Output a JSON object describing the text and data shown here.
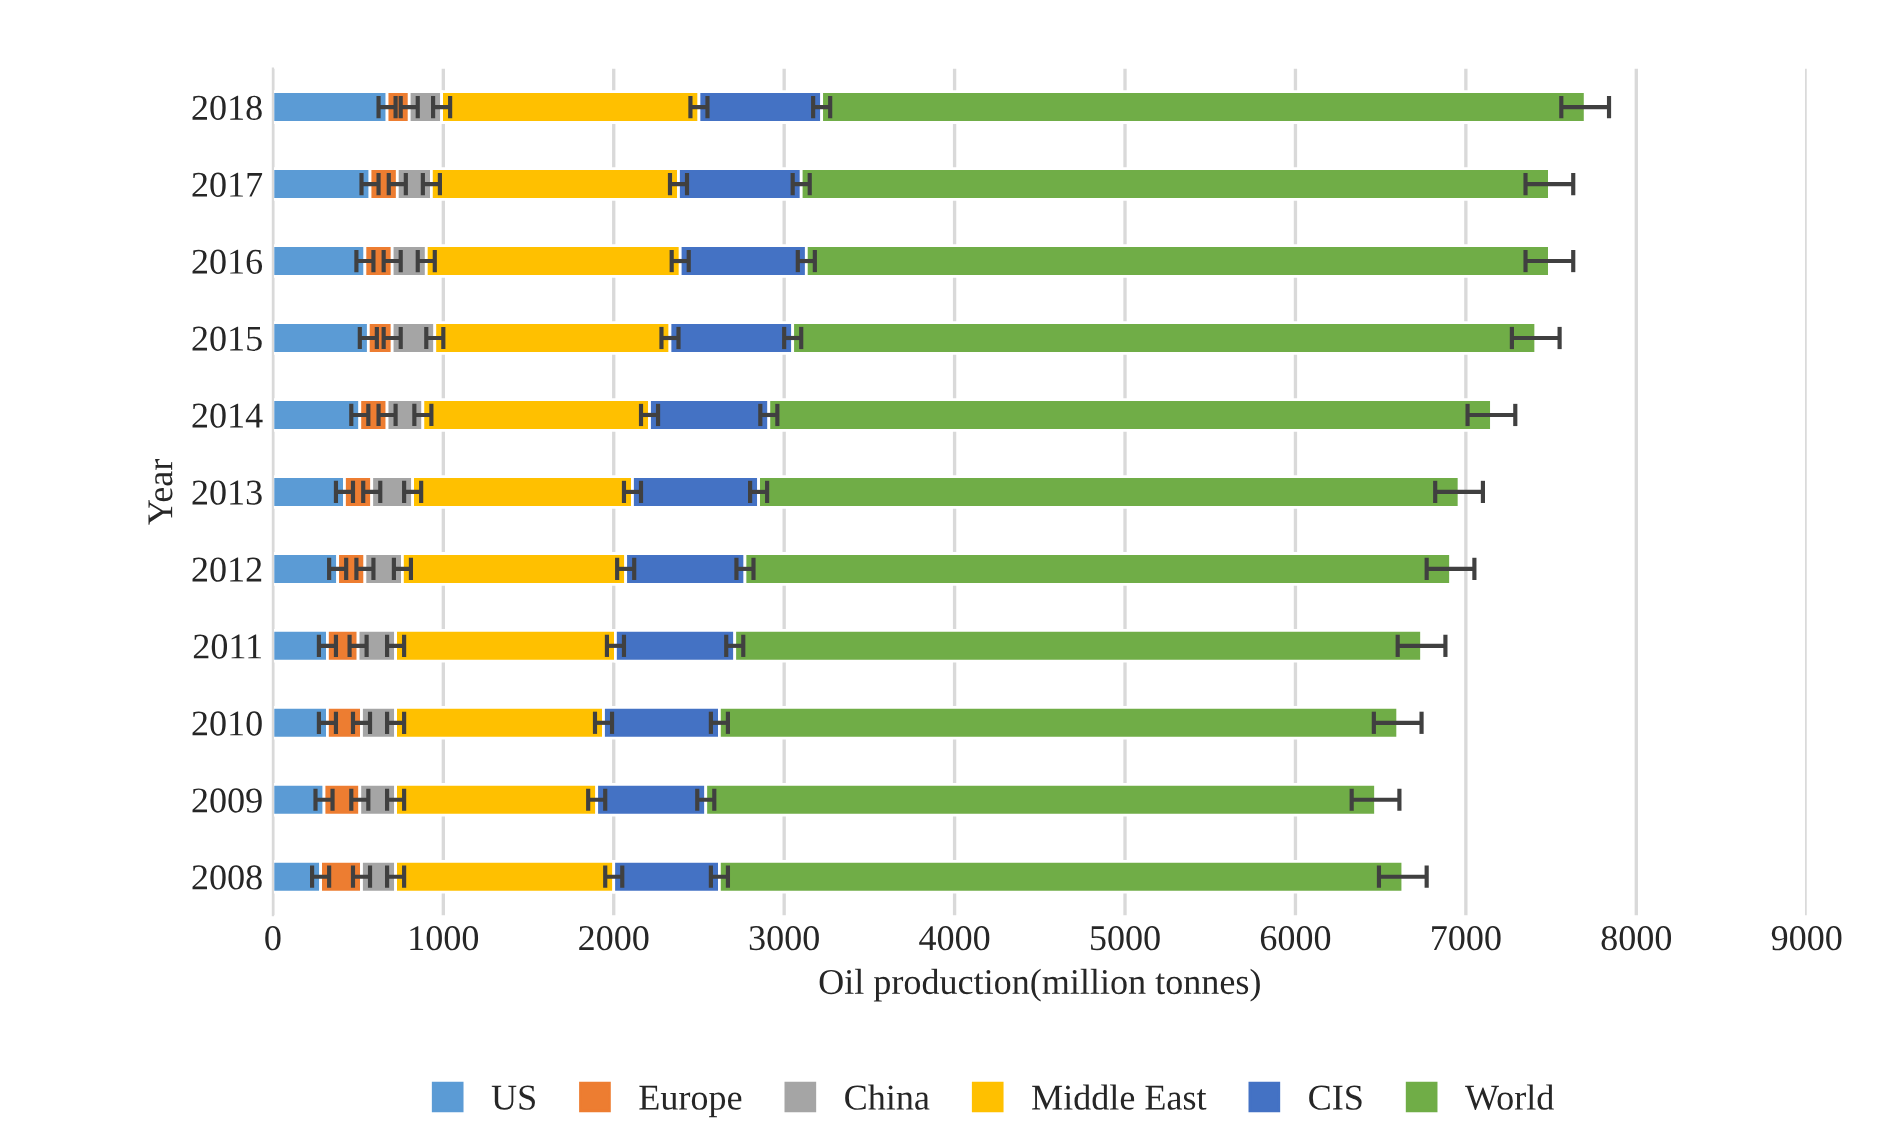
{
  "chart_data": {
    "type": "bar",
    "orientation": "horizontal",
    "stacked": true,
    "xlabel": "Oil production(million tonnes)",
    "ylabel": "Year",
    "categories": [
      "2018",
      "2017",
      "2016",
      "2015",
      "2014",
      "2013",
      "2012",
      "2011",
      "2010",
      "2009",
      "2008"
    ],
    "series": [
      {
        "name": "US",
        "color": "#5b9bd5",
        "values": [
          670,
          570,
          540,
          560,
          510,
          420,
          380,
          320,
          320,
          300,
          280
        ],
        "errors": [
          50,
          50,
          50,
          50,
          50,
          50,
          50,
          50,
          50,
          50,
          50
        ]
      },
      {
        "name": "Europe",
        "color": "#ed7d31",
        "values": [
          130,
          160,
          160,
          140,
          160,
          160,
          160,
          180,
          200,
          210,
          240
        ],
        "errors": [
          50,
          50,
          50,
          50,
          50,
          50,
          50,
          50,
          50,
          50,
          50
        ]
      },
      {
        "name": "China",
        "color": "#a5a5a5",
        "values": [
          190,
          200,
          200,
          250,
          210,
          240,
          220,
          220,
          200,
          210,
          200
        ],
        "errors": [
          50,
          50,
          50,
          50,
          50,
          50,
          50,
          50,
          50,
          50,
          50
        ]
      },
      {
        "name": "Middle East",
        "color": "#ffc000",
        "values": [
          1510,
          1450,
          1490,
          1380,
          1330,
          1290,
          1310,
          1290,
          1220,
          1180,
          1280
        ],
        "errors": [
          50,
          50,
          50,
          50,
          50,
          50,
          50,
          50,
          50,
          50,
          50
        ]
      },
      {
        "name": "CIS",
        "color": "#4472c4",
        "values": [
          720,
          720,
          740,
          720,
          700,
          740,
          700,
          700,
          680,
          640,
          620
        ],
        "errors": [
          50,
          50,
          50,
          50,
          50,
          50,
          50,
          50,
          50,
          50,
          50
        ]
      },
      {
        "name": "World",
        "color": "#70ad47",
        "values": [
          4480,
          4390,
          4360,
          4360,
          4240,
          4110,
          4140,
          4030,
          3980,
          3930,
          4010
        ],
        "errors": [
          140,
          140,
          140,
          140,
          140,
          140,
          140,
          140,
          140,
          140,
          140
        ]
      }
    ],
    "xlim": [
      0,
      9000
    ],
    "xticks": [
      0,
      1000,
      2000,
      3000,
      4000,
      5000,
      6000,
      7000,
      8000,
      9000
    ],
    "grid": "x",
    "legend": "bottom"
  }
}
